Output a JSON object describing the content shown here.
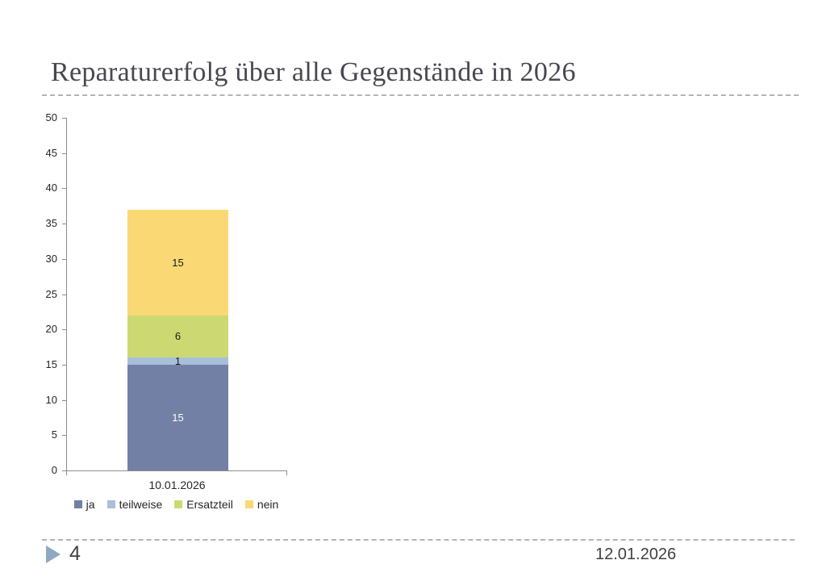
{
  "slide": {
    "title": "Reparaturerfolg über alle Gegenstände in 2026"
  },
  "footer": {
    "page_number": "4",
    "date": "12.01.2026"
  },
  "colors": {
    "title_text": "#47474F",
    "divider": "#B4B4B8",
    "axis_line": "#8C8C8C",
    "axis_text": "#262626",
    "footer_text": "#404040",
    "pointer_triangle": "#8EA9C1"
  },
  "chart_data": {
    "type": "bar",
    "stacked": true,
    "title": "",
    "xlabel": "",
    "ylabel": "",
    "categories": [
      "10.01.2026"
    ],
    "series": [
      {
        "name": "ja",
        "values": [
          15
        ],
        "color": "#7380A5",
        "label_color": "#FFFFFF"
      },
      {
        "name": "teilweise",
        "values": [
          1
        ],
        "color": "#A8BFDA",
        "label_color": "#1A1A1A"
      },
      {
        "name": "Ersatzteil",
        "values": [
          6
        ],
        "color": "#CCD973",
        "label_color": "#1A1A1A"
      },
      {
        "name": "nein",
        "values": [
          15
        ],
        "color": "#FAD874",
        "label_color": "#1A1A1A"
      }
    ],
    "ylim": [
      0,
      50
    ],
    "ytick_step": 5,
    "grid": false,
    "legend_position": "bottom"
  }
}
